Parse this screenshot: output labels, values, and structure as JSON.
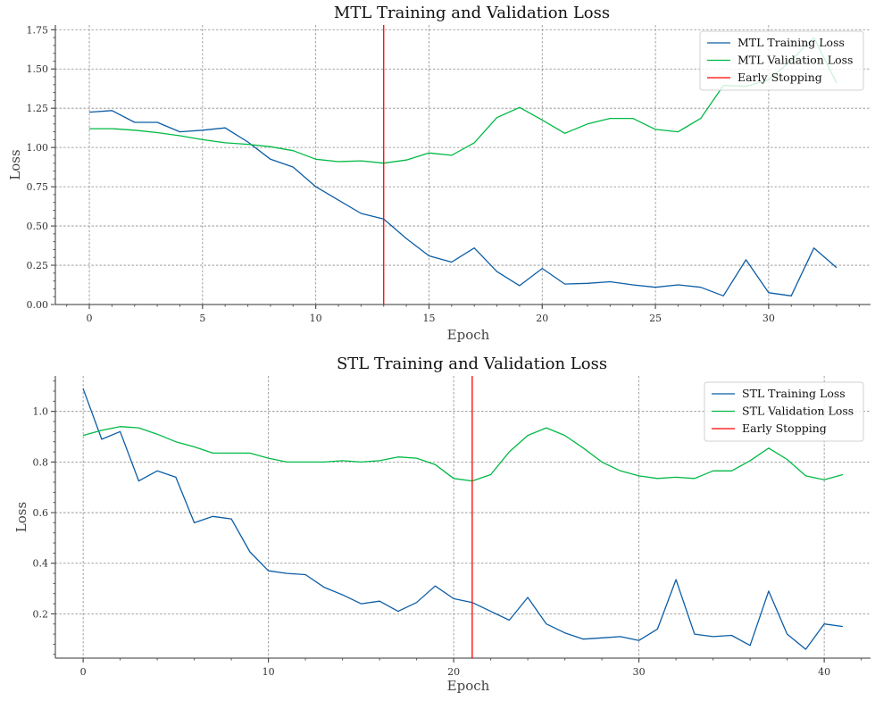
{
  "chart_data": [
    {
      "type": "line",
      "title": "MTL Training and Validation Loss",
      "xlabel": "Epoch",
      "ylabel": "Loss",
      "xlim": [
        -1.5,
        34.5
      ],
      "ylim": [
        0,
        1.78
      ],
      "xticks": [
        0,
        5,
        10,
        15,
        20,
        25,
        30
      ],
      "yticks": [
        0.0,
        0.25,
        0.5,
        0.75,
        1.0,
        1.25,
        1.5,
        1.75
      ],
      "ytick_labels": [
        "0.00",
        "0.25",
        "0.50",
        "0.75",
        "1.00",
        "1.25",
        "1.50",
        "1.75"
      ],
      "grid": true,
      "legend_position": "top-right",
      "x": [
        0,
        1,
        2,
        3,
        4,
        5,
        6,
        7,
        8,
        9,
        10,
        11,
        12,
        13,
        14,
        15,
        16,
        17,
        18,
        19,
        20,
        21,
        22,
        23,
        24,
        25,
        26,
        27,
        28,
        29,
        30,
        31,
        32,
        33
      ],
      "series": [
        {
          "name": "MTL Training Loss",
          "color": "#0c5da5",
          "values": [
            1.225,
            1.235,
            1.16,
            1.16,
            1.1,
            1.11,
            1.125,
            1.035,
            0.925,
            0.875,
            0.75,
            0.665,
            0.58,
            0.545,
            0.42,
            0.31,
            0.27,
            0.36,
            0.21,
            0.12,
            0.23,
            0.13,
            0.135,
            0.145,
            0.125,
            0.11,
            0.125,
            0.11,
            0.055,
            0.285,
            0.075,
            0.055,
            0.36,
            0.235
          ]
        },
        {
          "name": "MTL Validation Loss",
          "color": "#00b945",
          "values": [
            1.12,
            1.12,
            1.11,
            1.095,
            1.075,
            1.05,
            1.03,
            1.02,
            1.005,
            0.98,
            0.925,
            0.91,
            0.915,
            0.9,
            0.92,
            0.965,
            0.95,
            1.03,
            1.19,
            1.255,
            1.175,
            1.09,
            1.15,
            1.185,
            1.185,
            1.115,
            1.1,
            1.185,
            1.395,
            1.39,
            1.43,
            1.555,
            1.7,
            1.41
          ]
        }
      ],
      "vlines": [
        {
          "name": "Early Stopping",
          "x": 13,
          "color": "#ff0000"
        }
      ]
    },
    {
      "type": "line",
      "title": "STL Training and Validation Loss",
      "xlabel": "Epoch",
      "ylabel": "Loss",
      "xlim": [
        -1.5,
        42.5
      ],
      "ylim": [
        0.025,
        1.14
      ],
      "xticks": [
        0,
        10,
        20,
        30,
        40
      ],
      "yticks": [
        0.2,
        0.4,
        0.6,
        0.8,
        1.0
      ],
      "ytick_labels": [
        "0.2",
        "0.4",
        "0.6",
        "0.8",
        "1.0"
      ],
      "grid": true,
      "legend_position": "top-right",
      "x": [
        0,
        1,
        2,
        3,
        4,
        5,
        6,
        7,
        8,
        9,
        10,
        11,
        12,
        13,
        14,
        15,
        16,
        17,
        18,
        19,
        20,
        21,
        22,
        23,
        24,
        25,
        26,
        27,
        28,
        29,
        30,
        31,
        32,
        33,
        34,
        35,
        36,
        37,
        38,
        39,
        40,
        41
      ],
      "series": [
        {
          "name": "STL Training Loss",
          "color": "#0c5da5",
          "values": [
            1.09,
            0.89,
            0.92,
            0.725,
            0.765,
            0.74,
            0.56,
            0.585,
            0.575,
            0.445,
            0.37,
            0.36,
            0.355,
            0.305,
            0.275,
            0.24,
            0.25,
            0.21,
            0.245,
            0.31,
            0.26,
            0.245,
            0.21,
            0.175,
            0.265,
            0.16,
            0.125,
            0.1,
            0.105,
            0.11,
            0.095,
            0.14,
            0.335,
            0.12,
            0.11,
            0.115,
            0.075,
            0.29,
            0.12,
            0.06,
            0.16,
            0.15
          ]
        },
        {
          "name": "STL Validation Loss",
          "color": "#00b945",
          "values": [
            0.905,
            0.925,
            0.94,
            0.935,
            0.91,
            0.88,
            0.86,
            0.835,
            0.835,
            0.835,
            0.815,
            0.8,
            0.8,
            0.8,
            0.805,
            0.8,
            0.805,
            0.82,
            0.815,
            0.79,
            0.735,
            0.725,
            0.75,
            0.84,
            0.905,
            0.935,
            0.905,
            0.855,
            0.8,
            0.765,
            0.745,
            0.735,
            0.74,
            0.735,
            0.765,
            0.765,
            0.805,
            0.855,
            0.81,
            0.745,
            0.73,
            0.75
          ]
        }
      ],
      "vlines": [
        {
          "name": "Early Stopping",
          "x": 21,
          "color": "#ff0000"
        }
      ]
    }
  ]
}
